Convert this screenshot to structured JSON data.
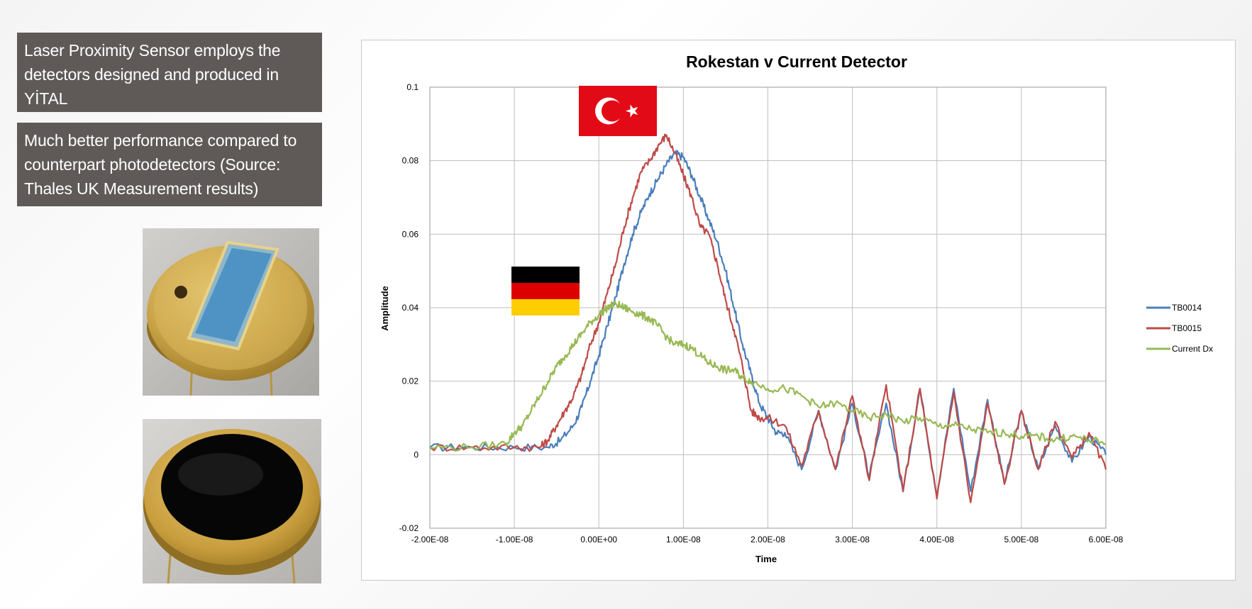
{
  "bullets": [
    "Laser Proximity Sensor employs the detectors designed and produced in YİTAL",
    "Much better performance compared to counterpart photodetectors (Source: Thales UK Measurement results)"
  ],
  "colors": {
    "box_bg": "#5f5a57",
    "tb0014": "#4a7ebb",
    "tb0015": "#be4b48",
    "current_dx": "#98b954",
    "flag_tr_red": "#e30a17",
    "flag_de_black": "#000000",
    "flag_de_red": "#dd0000",
    "flag_de_gold": "#ffce00"
  },
  "chart_data": {
    "type": "line",
    "title": "Rokestan v Current Detector",
    "xlabel": "Time",
    "ylabel": "Amplitude",
    "xlim": [
      -2e-08,
      6e-08
    ],
    "ylim": [
      -0.02,
      0.1
    ],
    "x_ticks": [
      "-2.00E-08",
      "-1.00E-08",
      "0.00E+00",
      "1.00E-08",
      "2.00E-08",
      "3.00E-08",
      "4.00E-08",
      "5.00E-08",
      "6.00E-08"
    ],
    "y_ticks": [
      "-0.02",
      "0",
      "0.02",
      "0.04",
      "0.06",
      "0.08",
      "0.1"
    ],
    "grid": true,
    "legend_position": "right",
    "series": [
      {
        "name": "TB0014",
        "color": "#4a7ebb",
        "points": [
          [
            -2e-08,
            0.002
          ],
          [
            -1.5e-08,
            0.002
          ],
          [
            -1e-08,
            0.002
          ],
          [
            -6e-09,
            0.002
          ],
          [
            -4.5e-09,
            0.004
          ],
          [
            -3e-09,
            0.008
          ],
          [
            -2e-09,
            0.013
          ],
          [
            -1e-09,
            0.02
          ],
          [
            0,
            0.027
          ],
          [
            1e-09,
            0.035
          ],
          [
            2e-09,
            0.043
          ],
          [
            3e-09,
            0.052
          ],
          [
            4e-09,
            0.06
          ],
          [
            5e-09,
            0.066
          ],
          [
            6e-09,
            0.071
          ],
          [
            7e-09,
            0.075
          ],
          [
            8e-09,
            0.079
          ],
          [
            9e-09,
            0.082
          ],
          [
            1e-08,
            0.081
          ],
          [
            1.1e-08,
            0.076
          ],
          [
            1.2e-08,
            0.07
          ],
          [
            1.3e-08,
            0.064
          ],
          [
            1.4e-08,
            0.058
          ],
          [
            1.5e-08,
            0.05
          ],
          [
            1.6e-08,
            0.04
          ],
          [
            1.7e-08,
            0.03
          ],
          [
            1.8e-08,
            0.022
          ],
          [
            1.9e-08,
            0.014
          ],
          [
            2e-08,
            0.01
          ],
          [
            2.1e-08,
            0.006
          ],
          [
            2.2e-08,
            0.006
          ],
          [
            2.4e-08,
            -0.004
          ],
          [
            2.6e-08,
            0.012
          ],
          [
            2.8e-08,
            -0.004
          ],
          [
            3e-08,
            0.014
          ],
          [
            3.2e-08,
            -0.006
          ],
          [
            3.4e-08,
            0.014
          ],
          [
            3.6e-08,
            -0.01
          ],
          [
            3.8e-08,
            0.018
          ],
          [
            4e-08,
            -0.011
          ],
          [
            4.2e-08,
            0.018
          ],
          [
            4.4e-08,
            -0.01
          ],
          [
            4.6e-08,
            0.015
          ],
          [
            4.8e-08,
            -0.008
          ],
          [
            5e-08,
            0.012
          ],
          [
            5.2e-08,
            -0.004
          ],
          [
            5.4e-08,
            0.008
          ],
          [
            5.6e-08,
            -0.002
          ],
          [
            5.8e-08,
            0.005
          ],
          [
            6e-08,
            0.0
          ]
        ]
      },
      {
        "name": "TB0015",
        "color": "#be4b48",
        "points": [
          [
            -2e-08,
            0.002
          ],
          [
            -1.5e-08,
            0.002
          ],
          [
            -1e-08,
            0.002
          ],
          [
            -7e-09,
            0.002
          ],
          [
            -6e-09,
            0.004
          ],
          [
            -5e-09,
            0.008
          ],
          [
            -4e-09,
            0.012
          ],
          [
            -3e-09,
            0.016
          ],
          [
            -2e-09,
            0.022
          ],
          [
            -1e-09,
            0.03
          ],
          [
            0,
            0.036
          ],
          [
            1e-09,
            0.044
          ],
          [
            2e-09,
            0.052
          ],
          [
            3e-09,
            0.062
          ],
          [
            4e-09,
            0.07
          ],
          [
            5e-09,
            0.077
          ],
          [
            6e-09,
            0.08
          ],
          [
            7e-09,
            0.084
          ],
          [
            8e-09,
            0.087
          ],
          [
            9e-09,
            0.082
          ],
          [
            1e-08,
            0.076
          ],
          [
            1.1e-08,
            0.07
          ],
          [
            1.2e-08,
            0.062
          ],
          [
            1.3e-08,
            0.06
          ],
          [
            1.4e-08,
            0.052
          ],
          [
            1.5e-08,
            0.042
          ],
          [
            1.6e-08,
            0.034
          ],
          [
            1.7e-08,
            0.024
          ],
          [
            1.8e-08,
            0.012
          ],
          [
            1.9e-08,
            0.01
          ],
          [
            2e-08,
            0.01
          ],
          [
            2.2e-08,
            0.008
          ],
          [
            2.4e-08,
            -0.003
          ],
          [
            2.6e-08,
            0.012
          ],
          [
            2.8e-08,
            -0.004
          ],
          [
            3e-08,
            0.016
          ],
          [
            3.2e-08,
            -0.007
          ],
          [
            3.4e-08,
            0.019
          ],
          [
            3.6e-08,
            -0.01
          ],
          [
            3.8e-08,
            0.018
          ],
          [
            4e-08,
            -0.012
          ],
          [
            4.2e-08,
            0.017
          ],
          [
            4.4e-08,
            -0.013
          ],
          [
            4.6e-08,
            0.014
          ],
          [
            4.8e-08,
            -0.008
          ],
          [
            5e-08,
            0.012
          ],
          [
            5.2e-08,
            -0.004
          ],
          [
            5.4e-08,
            0.009
          ],
          [
            5.6e-08,
            -0.001
          ],
          [
            5.8e-08,
            0.006
          ],
          [
            6e-08,
            -0.004
          ]
        ]
      },
      {
        "name": "Current Dx",
        "color": "#98b954",
        "points": [
          [
            -2e-08,
            0.002
          ],
          [
            -1.5e-08,
            0.002
          ],
          [
            -1.1e-08,
            0.003
          ],
          [
            -1e-08,
            0.006
          ],
          [
            -9e-09,
            0.008
          ],
          [
            -8e-09,
            0.012
          ],
          [
            -7e-09,
            0.016
          ],
          [
            -6e-09,
            0.02
          ],
          [
            -5e-09,
            0.024
          ],
          [
            -4e-09,
            0.027
          ],
          [
            -3e-09,
            0.03
          ],
          [
            -2e-09,
            0.033
          ],
          [
            -1e-09,
            0.036
          ],
          [
            0,
            0.038
          ],
          [
            1e-09,
            0.04
          ],
          [
            2e-09,
            0.041
          ],
          [
            3e-09,
            0.04
          ],
          [
            4e-09,
            0.039
          ],
          [
            5e-09,
            0.038
          ],
          [
            6e-09,
            0.037
          ],
          [
            7e-09,
            0.035
          ],
          [
            8e-09,
            0.032
          ],
          [
            9e-09,
            0.03
          ],
          [
            1e-08,
            0.03
          ],
          [
            1.1e-08,
            0.029
          ],
          [
            1.2e-08,
            0.027
          ],
          [
            1.3e-08,
            0.025
          ],
          [
            1.4e-08,
            0.024
          ],
          [
            1.5e-08,
            0.023
          ],
          [
            1.6e-08,
            0.023
          ],
          [
            1.7e-08,
            0.021
          ],
          [
            1.8e-08,
            0.02
          ],
          [
            2e-08,
            0.018
          ],
          [
            2.2e-08,
            0.018
          ],
          [
            2.4e-08,
            0.016
          ],
          [
            2.6e-08,
            0.013
          ],
          [
            2.8e-08,
            0.014
          ],
          [
            3e-08,
            0.012
          ],
          [
            3.2e-08,
            0.01
          ],
          [
            3.4e-08,
            0.011
          ],
          [
            3.6e-08,
            0.009
          ],
          [
            3.8e-08,
            0.01
          ],
          [
            4e-08,
            0.008
          ],
          [
            4.2e-08,
            0.008
          ],
          [
            4.4e-08,
            0.007
          ],
          [
            4.6e-08,
            0.006
          ],
          [
            4.8e-08,
            0.006
          ],
          [
            5e-08,
            0.005
          ],
          [
            5.2e-08,
            0.005
          ],
          [
            5.4e-08,
            0.004
          ],
          [
            5.6e-08,
            0.005
          ],
          [
            5.8e-08,
            0.004
          ],
          [
            6e-08,
            0.003
          ]
        ]
      }
    ]
  }
}
